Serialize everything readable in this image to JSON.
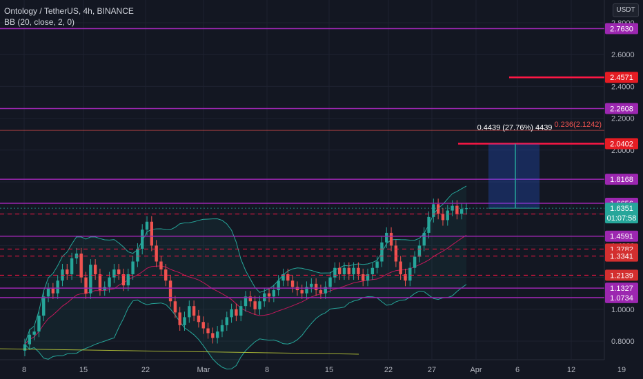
{
  "header": {
    "symbol_line": "Ontology / TetherUS, 4h, BINANCE",
    "indicator_line": "BB (20, close, 2, 0)",
    "unit_label": "USDT"
  },
  "colors": {
    "background": "#131722",
    "up": "#26a69a",
    "down": "#ef5350",
    "purple_level": "#9c27b0",
    "red_level": "#ff1744",
    "bb_band": "#26a69a",
    "bb_basis": "#c2185b",
    "trend": "#cddc39",
    "projection": "#2962ff"
  },
  "chart_data": {
    "type": "candlestick",
    "title": "Ontology / TetherUS, 4h, BINANCE",
    "y_axis_ticks": [
      "2.8000",
      "2.6000",
      "2.4000",
      "2.2000",
      "2.0000",
      "1.8000",
      "1.6000",
      "1.4000",
      "1.2000",
      "1.0000",
      "0.8000"
    ],
    "y_axis_tick_values": [
      2.8,
      2.6,
      2.4,
      2.2,
      2.0,
      1.8,
      1.6,
      1.4,
      1.2,
      1.0,
      0.8
    ],
    "ylim": [
      0.72,
      2.83
    ],
    "x_axis_ticks": [
      "8",
      "15",
      "22",
      "Mar",
      "8",
      "15",
      "22",
      "27",
      "Apr",
      "6",
      "12",
      "19"
    ],
    "horizontal_levels_solid": [
      {
        "value": 2.763,
        "label": "2.7630",
        "color": "#9c27b0"
      },
      {
        "value": 2.2608,
        "label": "2.2608",
        "color": "#9c27b0"
      },
      {
        "value": 1.8168,
        "label": "1.8168",
        "color": "#9c27b0"
      },
      {
        "value": 1.6656,
        "label": "1.6656",
        "color": "#9c27b0"
      },
      {
        "value": 1.4591,
        "label": "1.4591",
        "color": "#9c27b0"
      },
      {
        "value": 1.1327,
        "label": "1.1327",
        "color": "#9c27b0"
      },
      {
        "value": 1.0734,
        "label": "1.0734",
        "color": "#9c27b0"
      }
    ],
    "horizontal_levels_dashed": [
      {
        "value": 1.5982,
        "label": "1.5982",
        "color": "#ff1744"
      },
      {
        "value": 1.3782,
        "label": "1.3782",
        "color": "#ff1744"
      },
      {
        "value": 1.3341,
        "label": "1.3341",
        "color": "#ff1744"
      },
      {
        "value": 1.2139,
        "label": "1.2139",
        "color": "#ff1744"
      }
    ],
    "ray_levels": [
      {
        "value": 2.4571,
        "label": "2.4571",
        "color": "#ff1744"
      },
      {
        "value": 2.0402,
        "label": "2.0402",
        "color": "#ff1744"
      }
    ],
    "current_price": {
      "value": 1.6351,
      "label": "1.6351",
      "countdown": "01:07:58"
    },
    "fib_line": {
      "value": 2.1242,
      "label": "0.236(2.1242)"
    },
    "measure_label": "0.4439 (27.76%) 4439",
    "candles": [
      [
        0.74,
        0.78
      ],
      [
        0.78,
        0.84
      ],
      [
        0.84,
        0.86
      ],
      [
        0.86,
        0.96
      ],
      [
        0.96,
        1.08
      ],
      [
        1.08,
        1.13
      ],
      [
        1.13,
        1.1
      ],
      [
        1.1,
        1.18
      ],
      [
        1.18,
        1.25
      ],
      [
        1.25,
        1.22
      ],
      [
        1.22,
        1.32
      ],
      [
        1.32,
        1.35
      ],
      [
        1.35,
        1.2
      ],
      [
        1.2,
        1.1
      ],
      [
        1.1,
        1.28
      ],
      [
        1.28,
        1.22
      ],
      [
        1.22,
        1.12
      ],
      [
        1.12,
        1.14
      ],
      [
        1.14,
        1.2
      ],
      [
        1.2,
        1.25
      ],
      [
        1.25,
        1.22
      ],
      [
        1.22,
        1.15
      ],
      [
        1.15,
        1.22
      ],
      [
        1.22,
        1.3
      ],
      [
        1.3,
        1.38
      ],
      [
        1.38,
        1.5
      ],
      [
        1.5,
        1.55
      ],
      [
        1.55,
        1.4
      ],
      [
        1.4,
        1.3
      ],
      [
        1.3,
        1.25
      ],
      [
        1.25,
        1.18
      ],
      [
        1.18,
        1.05
      ],
      [
        1.05,
        0.98
      ],
      [
        0.98,
        0.9
      ],
      [
        0.9,
        0.95
      ],
      [
        0.95,
        1.02
      ],
      [
        1.02,
        0.96
      ],
      [
        0.96,
        0.92
      ],
      [
        0.92,
        0.88
      ],
      [
        0.88,
        0.85
      ],
      [
        0.85,
        0.82
      ],
      [
        0.82,
        0.86
      ],
      [
        0.86,
        0.9
      ],
      [
        0.9,
        0.95
      ],
      [
        0.95,
        1.0
      ],
      [
        1.0,
        0.96
      ],
      [
        0.96,
        1.02
      ],
      [
        1.02,
        1.08
      ],
      [
        1.08,
        1.05
      ],
      [
        1.05,
        1.0
      ],
      [
        1.0,
        1.05
      ],
      [
        1.05,
        1.1
      ],
      [
        1.1,
        1.08
      ],
      [
        1.08,
        1.12
      ],
      [
        1.12,
        1.18
      ],
      [
        1.18,
        1.22
      ],
      [
        1.22,
        1.18
      ],
      [
        1.18,
        1.14
      ],
      [
        1.14,
        1.12
      ],
      [
        1.12,
        1.1
      ],
      [
        1.1,
        1.14
      ],
      [
        1.14,
        1.16
      ],
      [
        1.16,
        1.12
      ],
      [
        1.12,
        1.1
      ],
      [
        1.1,
        1.14
      ],
      [
        1.14,
        1.2
      ],
      [
        1.2,
        1.26
      ],
      [
        1.26,
        1.22
      ],
      [
        1.22,
        1.26
      ],
      [
        1.26,
        1.22
      ],
      [
        1.22,
        1.26
      ],
      [
        1.26,
        1.22
      ],
      [
        1.22,
        1.18
      ],
      [
        1.18,
        1.22
      ],
      [
        1.22,
        1.26
      ],
      [
        1.26,
        1.3
      ],
      [
        1.3,
        1.42
      ],
      [
        1.42,
        1.48
      ],
      [
        1.48,
        1.4
      ],
      [
        1.4,
        1.3
      ],
      [
        1.3,
        1.22
      ],
      [
        1.22,
        1.18
      ],
      [
        1.18,
        1.26
      ],
      [
        1.26,
        1.33
      ],
      [
        1.33,
        1.4
      ],
      [
        1.4,
        1.48
      ],
      [
        1.48,
        1.58
      ],
      [
        1.58,
        1.66
      ],
      [
        1.66,
        1.6
      ],
      [
        1.6,
        1.56
      ],
      [
        1.56,
        1.62
      ],
      [
        1.62,
        1.65
      ],
      [
        1.65,
        1.6
      ],
      [
        1.6,
        1.63
      ],
      [
        1.63,
        1.6351
      ]
    ]
  }
}
